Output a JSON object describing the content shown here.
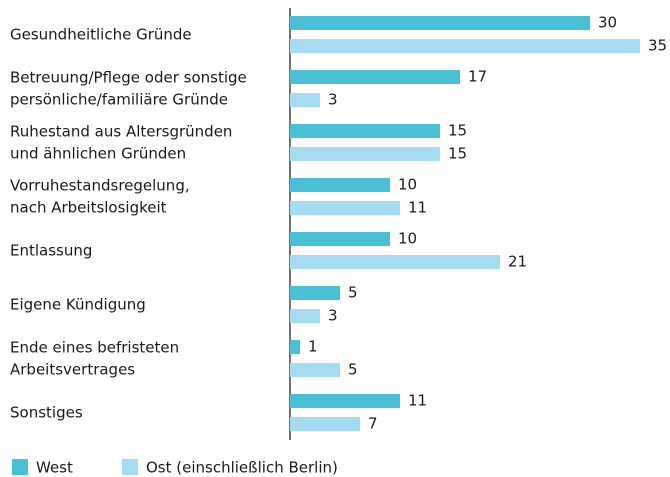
{
  "chart_data": {
    "type": "barh",
    "categories": [
      [
        "Gesundheitliche Gründe"
      ],
      [
        "Betreuung/Pflege oder sonstige",
        "persönliche/familiäre Gründe"
      ],
      [
        "Ruhestand aus Altersgründen",
        "und ähnlichen Gründen"
      ],
      [
        "Vorruhestandsregelung,",
        "nach Arbeitslosigkeit"
      ],
      [
        "Entlassung"
      ],
      [
        "Eigene Kündigung"
      ],
      [
        "Ende eines befristeten",
        "Arbeitsvertrages"
      ],
      [
        "Sonstiges"
      ]
    ],
    "series": [
      {
        "name": "West",
        "color": "#4bbfd4",
        "values": [
          30,
          17,
          15,
          10,
          10,
          5,
          1,
          11
        ]
      },
      {
        "name": "Ost (einschließlich Berlin)",
        "color": "#a6dcf1",
        "values": [
          35,
          3,
          15,
          11,
          21,
          3,
          5,
          7
        ]
      }
    ],
    "legend": "bottom-left"
  }
}
